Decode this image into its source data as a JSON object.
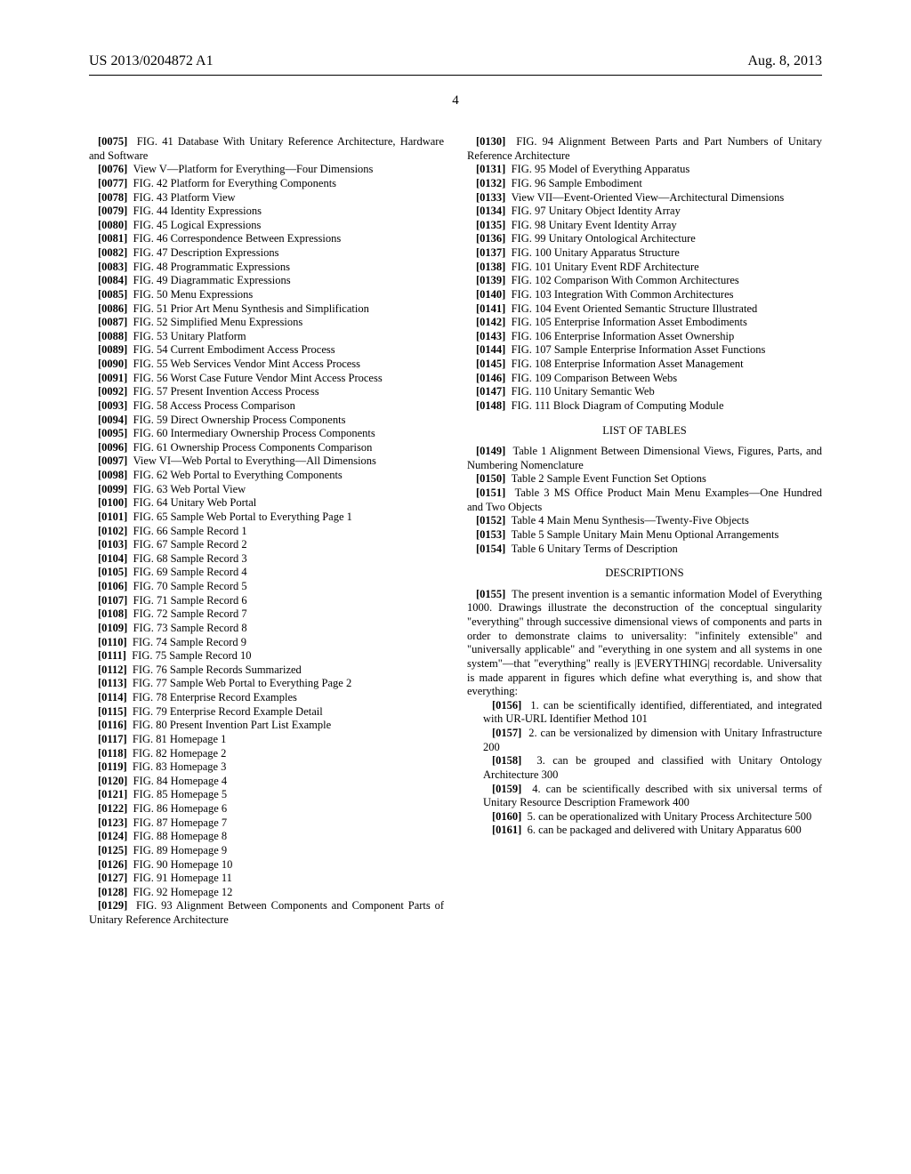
{
  "header": {
    "pub_number": "US 2013/0204872 A1",
    "date": "Aug. 8, 2013"
  },
  "page_number": "4",
  "left": [
    {
      "n": "[0075]",
      "t": "FIG. 41 Database With Unitary Reference Architecture, Hardware and Software"
    },
    {
      "n": "[0076]",
      "t": "View V—Platform for Everything—Four Dimensions"
    },
    {
      "n": "[0077]",
      "t": "FIG. 42 Platform for Everything Components"
    },
    {
      "n": "[0078]",
      "t": "FIG. 43 Platform View"
    },
    {
      "n": "[0079]",
      "t": "FIG. 44 Identity Expressions"
    },
    {
      "n": "[0080]",
      "t": "FIG. 45 Logical Expressions"
    },
    {
      "n": "[0081]",
      "t": "FIG. 46 Correspondence Between Expressions"
    },
    {
      "n": "[0082]",
      "t": "FIG. 47 Description Expressions"
    },
    {
      "n": "[0083]",
      "t": "FIG. 48 Programmatic Expressions"
    },
    {
      "n": "[0084]",
      "t": "FIG. 49 Diagrammatic Expressions"
    },
    {
      "n": "[0085]",
      "t": "FIG. 50 Menu Expressions"
    },
    {
      "n": "[0086]",
      "t": "FIG. 51 Prior Art Menu Synthesis and Simplification"
    },
    {
      "n": "[0087]",
      "t": "FIG. 52 Simplified Menu Expressions"
    },
    {
      "n": "[0088]",
      "t": "FIG. 53 Unitary Platform"
    },
    {
      "n": "[0089]",
      "t": "FIG. 54 Current Embodiment Access Process"
    },
    {
      "n": "[0090]",
      "t": "FIG. 55 Web Services Vendor Mint Access Process"
    },
    {
      "n": "[0091]",
      "t": "FIG. 56 Worst Case Future Vendor Mint Access Process"
    },
    {
      "n": "[0092]",
      "t": "FIG. 57 Present Invention Access Process"
    },
    {
      "n": "[0093]",
      "t": "FIG. 58 Access Process Comparison"
    },
    {
      "n": "[0094]",
      "t": "FIG. 59 Direct Ownership Process Components"
    },
    {
      "n": "[0095]",
      "t": "FIG. 60 Intermediary Ownership Process Components"
    },
    {
      "n": "[0096]",
      "t": "FIG. 61 Ownership Process Components Comparison"
    },
    {
      "n": "[0097]",
      "t": "View VI—Web Portal to Everything—All Dimensions"
    },
    {
      "n": "[0098]",
      "t": "FIG. 62 Web Portal to Everything Components"
    },
    {
      "n": "[0099]",
      "t": "FIG. 63 Web Portal View"
    },
    {
      "n": "[0100]",
      "t": "FIG. 64 Unitary Web Portal"
    },
    {
      "n": "[0101]",
      "t": "FIG. 65 Sample Web Portal to Everything Page 1"
    },
    {
      "n": "[0102]",
      "t": "FIG. 66 Sample Record 1"
    },
    {
      "n": "[0103]",
      "t": "FIG. 67 Sample Record 2"
    },
    {
      "n": "[0104]",
      "t": "FIG. 68 Sample Record 3"
    },
    {
      "n": "[0105]",
      "t": "FIG. 69 Sample Record 4"
    },
    {
      "n": "[0106]",
      "t": "FIG. 70 Sample Record 5"
    },
    {
      "n": "[0107]",
      "t": "FIG. 71 Sample Record 6"
    },
    {
      "n": "[0108]",
      "t": "FIG. 72 Sample Record 7"
    },
    {
      "n": "[0109]",
      "t": "FIG. 73 Sample Record 8"
    },
    {
      "n": "[0110]",
      "t": "FIG. 74 Sample Record 9"
    },
    {
      "n": "[0111]",
      "t": "FIG. 75 Sample Record 10"
    },
    {
      "n": "[0112]",
      "t": "FIG. 76 Sample Records Summarized"
    },
    {
      "n": "[0113]",
      "t": "FIG. 77 Sample Web Portal to Everything Page 2"
    },
    {
      "n": "[0114]",
      "t": "FIG. 78 Enterprise Record Examples"
    },
    {
      "n": "[0115]",
      "t": "FIG. 79 Enterprise Record Example Detail"
    },
    {
      "n": "[0116]",
      "t": "FIG. 80 Present Invention Part List Example"
    },
    {
      "n": "[0117]",
      "t": "FIG. 81 Homepage 1"
    },
    {
      "n": "[0118]",
      "t": "FIG. 82 Homepage 2"
    },
    {
      "n": "[0119]",
      "t": "FIG. 83 Homepage 3"
    },
    {
      "n": "[0120]",
      "t": "FIG. 84 Homepage 4"
    },
    {
      "n": "[0121]",
      "t": "FIG. 85 Homepage 5"
    },
    {
      "n": "[0122]",
      "t": "FIG. 86 Homepage 6"
    },
    {
      "n": "[0123]",
      "t": "FIG. 87 Homepage 7"
    },
    {
      "n": "[0124]",
      "t": "FIG. 88 Homepage 8"
    },
    {
      "n": "[0125]",
      "t": "FIG. 89 Homepage 9"
    },
    {
      "n": "[0126]",
      "t": "FIG. 90 Homepage 10"
    },
    {
      "n": "[0127]",
      "t": "FIG. 91 Homepage 11"
    },
    {
      "n": "[0128]",
      "t": "FIG. 92 Homepage 12"
    },
    {
      "n": "[0129]",
      "t": "FIG. 93 Alignment Between Components and Component Parts of Unitary Reference Architecture"
    }
  ],
  "right_figs": [
    {
      "n": "[0130]",
      "t": "FIG. 94 Alignment Between Parts and Part Numbers of Unitary Reference Architecture"
    },
    {
      "n": "[0131]",
      "t": "FIG. 95 Model of Everything Apparatus"
    },
    {
      "n": "[0132]",
      "t": "FIG. 96 Sample Embodiment"
    },
    {
      "n": "[0133]",
      "t": "View VII—Event-Oriented View—Architectural Dimensions"
    },
    {
      "n": "[0134]",
      "t": "FIG. 97 Unitary Object Identity Array"
    },
    {
      "n": "[0135]",
      "t": "FIG. 98 Unitary Event Identity Array"
    },
    {
      "n": "[0136]",
      "t": "FIG. 99 Unitary Ontological Architecture"
    },
    {
      "n": "[0137]",
      "t": "FIG. 100 Unitary Apparatus Structure"
    },
    {
      "n": "[0138]",
      "t": "FIG. 101 Unitary Event RDF Architecture"
    },
    {
      "n": "[0139]",
      "t": "FIG. 102 Comparison With Common Architectures"
    },
    {
      "n": "[0140]",
      "t": "FIG. 103 Integration With Common Architectures"
    },
    {
      "n": "[0141]",
      "t": "FIG. 104 Event Oriented Semantic Structure Illustrated"
    },
    {
      "n": "[0142]",
      "t": "FIG. 105 Enterprise Information Asset Embodiments"
    },
    {
      "n": "[0143]",
      "t": "FIG. 106 Enterprise Information Asset Ownership"
    },
    {
      "n": "[0144]",
      "t": "FIG. 107 Sample Enterprise Information Asset Functions"
    },
    {
      "n": "[0145]",
      "t": "FIG. 108 Enterprise Information Asset Management"
    },
    {
      "n": "[0146]",
      "t": "FIG. 109 Comparison Between Webs"
    },
    {
      "n": "[0147]",
      "t": "FIG. 110 Unitary Semantic Web"
    },
    {
      "n": "[0148]",
      "t": "FIG. 111 Block Diagram of Computing Module"
    }
  ],
  "tables_head": "LIST OF TABLES",
  "tables": [
    {
      "n": "[0149]",
      "t": "Table 1 Alignment Between Dimensional Views, Figures, Parts, and Numbering Nomenclature"
    },
    {
      "n": "[0150]",
      "t": "Table 2 Sample Event Function Set Options"
    },
    {
      "n": "[0151]",
      "t": "Table 3 MS Office Product Main Menu Examples—One Hundred and Two Objects"
    },
    {
      "n": "[0152]",
      "t": "Table 4 Main Menu Synthesis—Twenty-Five Objects"
    },
    {
      "n": "[0153]",
      "t": "Table 5 Sample Unitary Main Menu Optional Arrangements"
    },
    {
      "n": "[0154]",
      "t": "Table 6 Unitary Terms of Description"
    }
  ],
  "desc_head": "DESCRIPTIONS",
  "desc_para": {
    "n": "[0155]",
    "t": "The present invention is a semantic information Model of Everything 1000. Drawings illustrate the deconstruction of the conceptual singularity \"everything\" through successive dimensional views of components and parts in order to demonstrate claims to universality: \"infinitely extensible\" and \"universally applicable\" and \"everything in one system and all systems in one system\"—that \"everything\" really is |EVERYTHING| recordable. Universality is made apparent in figures which define what everything is, and show that everything:"
  },
  "desc_items": [
    {
      "n": "[0156]",
      "t": "1. can be scientifically identified, differentiated, and integrated with UR-URL Identifier Method 101"
    },
    {
      "n": "[0157]",
      "t": "2. can be versionalized by dimension with Unitary Infrastructure 200"
    },
    {
      "n": "[0158]",
      "t": "3. can be grouped and classified with Unitary Ontology Architecture 300"
    },
    {
      "n": "[0159]",
      "t": "4. can be scientifically described with six universal terms of Unitary Resource Description Framework 400"
    },
    {
      "n": "[0160]",
      "t": "5. can be operationalized with Unitary Process Architecture 500"
    },
    {
      "n": "[0161]",
      "t": "6. can be packaged and delivered with Unitary Apparatus 600"
    }
  ]
}
